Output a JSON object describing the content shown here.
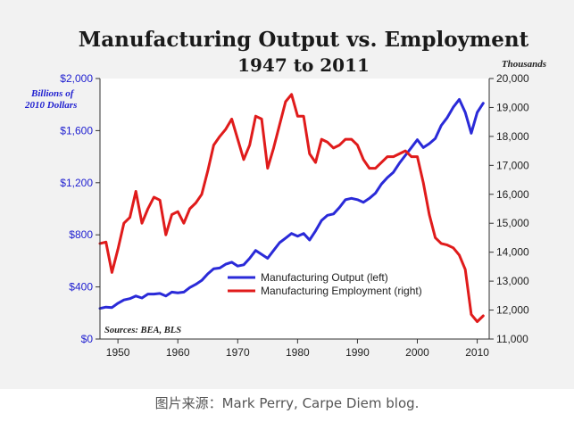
{
  "chart_data": {
    "type": "line",
    "title": "Manufacturing Output vs. Employment",
    "subtitle": "1947 to 2011",
    "y_left_label": "Billions of 2010 Dollars",
    "y_right_label": "Thousands",
    "sources": "Sources: BEA, BLS",
    "xlim": [
      1947,
      2012
    ],
    "ylim_left": [
      0,
      2000
    ],
    "ylim_right": [
      11000,
      20000
    ],
    "x_ticks": [
      1950,
      1960,
      1970,
      1980,
      1990,
      2000,
      2010
    ],
    "y_left_ticks": [
      {
        "value": 0,
        "label": "$0"
      },
      {
        "value": 400,
        "label": "$400"
      },
      {
        "value": 800,
        "label": "$800"
      },
      {
        "value": 1200,
        "label": "$1,200"
      },
      {
        "value": 1600,
        "label": "$1,600"
      },
      {
        "value": 2000,
        "label": "$2,000"
      }
    ],
    "y_right_ticks": [
      {
        "value": 11000,
        "label": "11,000"
      },
      {
        "value": 12000,
        "label": "12,000"
      },
      {
        "value": 13000,
        "label": "13,000"
      },
      {
        "value": 14000,
        "label": "14,000"
      },
      {
        "value": 15000,
        "label": "15,000"
      },
      {
        "value": 16000,
        "label": "16,000"
      },
      {
        "value": 17000,
        "label": "17,000"
      },
      {
        "value": 18000,
        "label": "18,000"
      },
      {
        "value": 19000,
        "label": "19,000"
      },
      {
        "value": 20000,
        "label": "20,000"
      }
    ],
    "legend_position": "lower-center",
    "grid": false,
    "series": [
      {
        "name": "Manufacturing Output (left)",
        "axis": "left",
        "color": "#2a2ad8",
        "x": [
          1947,
          1948,
          1949,
          1950,
          1951,
          1952,
          1953,
          1954,
          1955,
          1956,
          1957,
          1958,
          1959,
          1960,
          1961,
          1962,
          1963,
          1964,
          1965,
          1966,
          1967,
          1968,
          1969,
          1970,
          1971,
          1972,
          1973,
          1974,
          1975,
          1976,
          1977,
          1978,
          1979,
          1980,
          1981,
          1982,
          1983,
          1984,
          1985,
          1986,
          1987,
          1988,
          1989,
          1990,
          1991,
          1992,
          1993,
          1994,
          1995,
          1996,
          1997,
          1998,
          1999,
          2000,
          2001,
          2002,
          2003,
          2004,
          2005,
          2006,
          2007,
          2008,
          2009,
          2010,
          2011
        ],
        "y": [
          235,
          245,
          242,
          275,
          300,
          310,
          330,
          315,
          345,
          345,
          350,
          330,
          360,
          355,
          360,
          395,
          420,
          450,
          500,
          540,
          545,
          575,
          590,
          560,
          570,
          620,
          680,
          650,
          620,
          680,
          740,
          775,
          810,
          790,
          810,
          760,
          830,
          910,
          950,
          960,
          1010,
          1070,
          1080,
          1070,
          1050,
          1080,
          1120,
          1190,
          1240,
          1280,
          1350,
          1410,
          1470,
          1530,
          1470,
          1500,
          1540,
          1640,
          1700,
          1780,
          1840,
          1740,
          1580,
          1740,
          1810
        ]
      },
      {
        "name": "Manufacturing Employment (right)",
        "axis": "right",
        "color": "#e01b1b",
        "x": [
          1947,
          1948,
          1949,
          1950,
          1951,
          1952,
          1953,
          1954,
          1955,
          1956,
          1957,
          1958,
          1959,
          1960,
          1961,
          1962,
          1963,
          1964,
          1965,
          1966,
          1967,
          1968,
          1969,
          1970,
          1971,
          1972,
          1973,
          1974,
          1975,
          1976,
          1977,
          1978,
          1979,
          1980,
          1981,
          1982,
          1983,
          1984,
          1985,
          1986,
          1987,
          1988,
          1989,
          1990,
          1991,
          1992,
          1993,
          1994,
          1995,
          1996,
          1997,
          1998,
          1999,
          2000,
          2001,
          2002,
          2003,
          2004,
          2005,
          2006,
          2007,
          2008,
          2009,
          2010,
          2011
        ],
        "y": [
          14300,
          14350,
          13300,
          14100,
          15000,
          15200,
          16100,
          15000,
          15500,
          15900,
          15800,
          14600,
          15300,
          15400,
          15000,
          15500,
          15700,
          16000,
          16800,
          17700,
          18000,
          18250,
          18600,
          17900,
          17200,
          17700,
          18700,
          18600,
          16900,
          17600,
          18400,
          19200,
          19450,
          18700,
          18700,
          17400,
          17100,
          17900,
          17800,
          17600,
          17700,
          17900,
          17900,
          17700,
          17200,
          16900,
          16900,
          17100,
          17300,
          17300,
          17400,
          17500,
          17300,
          17300,
          16400,
          15300,
          14500,
          14300,
          14250,
          14150,
          13900,
          13400,
          11850,
          11600,
          11800
        ]
      }
    ]
  },
  "caption": "图片来源：Mark Perry, Carpe Diem blog."
}
